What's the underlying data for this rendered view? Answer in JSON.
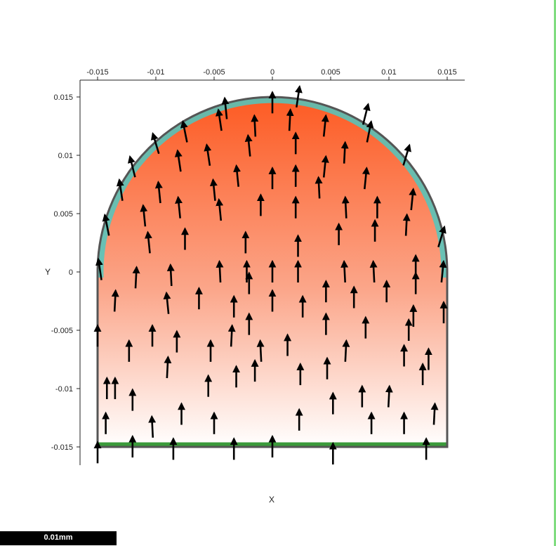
{
  "chart_data": {
    "type": "vector_field",
    "xlabel": "X",
    "ylabel": "Y",
    "xlim": [
      -0.0165,
      0.0165
    ],
    "ylim": [
      -0.0165,
      0.0165
    ],
    "x_ticks": [
      -0.015,
      -0.01,
      -0.005,
      0,
      0.005,
      0.01,
      0.015
    ],
    "x_tick_labels": [
      "-0.015",
      "-0.01",
      "-0.005",
      "0",
      "0.005",
      "0.01",
      "0.015"
    ],
    "y_ticks": [
      0.015,
      0.01,
      0.005,
      0,
      -0.005,
      -0.01,
      -0.015
    ],
    "y_tick_labels": [
      "0.015",
      "0.01",
      "0.005",
      "0",
      "-0.005",
      "-0.01",
      "-0.015"
    ],
    "domain_shape": "rectangle x in [-0.015, 0.015], y in [-0.015, 0] topped by semicircle of radius 0.015 centered at origin",
    "colors": {
      "field_high": "#fd5a22",
      "field_low": "#ffffff",
      "outer_boundary": "#4fc8c0",
      "bottom_boundary": "#3a9a3a",
      "outline": "#555555",
      "arrow": "#000000"
    },
    "arrows": [
      [
        -0.015,
        -0.0155,
        0.0
      ],
      [
        -0.012,
        -0.015,
        0.0
      ],
      [
        -0.0085,
        -0.0152,
        0.0
      ],
      [
        -0.0033,
        -0.0152,
        0.0
      ],
      [
        0.0,
        -0.015,
        0.0
      ],
      [
        0.0052,
        -0.0156,
        0.0
      ],
      [
        0.0132,
        -0.0152,
        0.0
      ],
      [
        -0.0143,
        -0.013,
        0.0
      ],
      [
        -0.0103,
        -0.0133,
        -0.05
      ],
      [
        -0.0078,
        -0.0122,
        0.0
      ],
      [
        -0.005,
        -0.013,
        0.0
      ],
      [
        0.0023,
        -0.0127,
        0.0
      ],
      [
        0.0085,
        -0.013,
        0.0
      ],
      [
        0.0113,
        -0.013,
        0.0
      ],
      [
        0.0139,
        -0.0122,
        0.05
      ],
      [
        -0.012,
        -0.011,
        0.0
      ],
      [
        -0.0142,
        -0.01,
        0.0
      ],
      [
        0.0052,
        -0.0113,
        0.0
      ],
      [
        0.0077,
        -0.0107,
        0.0
      ],
      [
        0.01,
        -0.0107,
        0.05
      ],
      [
        -0.0055,
        -0.0098,
        0.0
      ],
      [
        -0.009,
        -0.0082,
        0.05
      ],
      [
        -0.0031,
        -0.009,
        0.0
      ],
      [
        -0.0015,
        -0.0085,
        0.0
      ],
      [
        0.0024,
        -0.0088,
        0.0
      ],
      [
        0.0047,
        -0.0083,
        0.0
      ],
      [
        0.0129,
        -0.0088,
        0.0
      ],
      [
        -0.0123,
        -0.0068,
        0.0
      ],
      [
        -0.0103,
        -0.0055,
        0.0
      ],
      [
        -0.0082,
        -0.006,
        0.0
      ],
      [
        -0.0053,
        -0.0068,
        0.0
      ],
      [
        -0.0035,
        -0.0055,
        0.05
      ],
      [
        -0.001,
        -0.0068,
        -0.05
      ],
      [
        0.0013,
        -0.0063,
        0.0
      ],
      [
        0.0063,
        -0.0068,
        0.05
      ],
      [
        0.0113,
        -0.0072,
        0.0
      ],
      [
        0.0117,
        -0.005,
        0.0
      ],
      [
        0.0134,
        -0.0075,
        0.0
      ],
      [
        -0.015,
        -0.0055,
        0.0
      ],
      [
        -0.0135,
        -0.01,
        0.0
      ],
      [
        -0.002,
        -0.0045,
        0.0
      ],
      [
        0.0046,
        -0.0045,
        0.0
      ],
      [
        0.008,
        -0.0048,
        0.0
      ],
      [
        0.0147,
        -0.0035,
        0.0
      ],
      [
        0.0121,
        -0.0038,
        0.0
      ],
      [
        -0.0135,
        -0.0025,
        0.05
      ],
      [
        -0.009,
        -0.0027,
        -0.1
      ],
      [
        -0.0063,
        -0.0023,
        0.0
      ],
      [
        -0.0033,
        -0.003,
        0.0
      ],
      [
        0.0,
        -0.0025,
        0.0
      ],
      [
        0.0026,
        -0.003,
        0.0
      ],
      [
        0.0046,
        -0.0017,
        0.0
      ],
      [
        0.007,
        -0.0022,
        0.0
      ],
      [
        0.0098,
        -0.0017,
        0.0
      ],
      [
        0.0123,
        -0.001,
        0.0
      ],
      [
        -0.0117,
        -0.0005,
        0.05
      ],
      [
        -0.0087,
        -0.0003,
        -0.05
      ],
      [
        -0.0045,
        0.0,
        -0.05
      ],
      [
        -0.0022,
        0.0,
        0.0
      ],
      [
        -0.002,
        -0.001,
        0.0
      ],
      [
        0.0,
        0.0,
        0.0
      ],
      [
        0.0022,
        0.0,
        0.0
      ],
      [
        0.0062,
        0.0,
        -0.05
      ],
      [
        0.0087,
        0.0,
        -0.05
      ],
      [
        0.0123,
        0.0005,
        0.0
      ],
      [
        0.0146,
        0.0,
        0.1
      ],
      [
        -0.0148,
        0.0002,
        -0.15
      ],
      [
        -0.0106,
        0.0025,
        -0.1
      ],
      [
        -0.0075,
        0.0028,
        0.0
      ],
      [
        -0.0023,
        0.0025,
        0.0
      ],
      [
        0.0022,
        0.0022,
        0.0
      ],
      [
        0.0057,
        0.0032,
        0.0
      ],
      [
        0.0088,
        0.0035,
        0.0
      ],
      [
        0.0115,
        0.004,
        0.05
      ],
      [
        0.0145,
        0.003,
        0.3
      ],
      [
        -0.0142,
        0.004,
        -0.2
      ],
      [
        -0.011,
        0.0048,
        -0.1
      ],
      [
        -0.008,
        0.0055,
        -0.1
      ],
      [
        -0.0045,
        0.0053,
        -0.1
      ],
      [
        -0.001,
        0.0057,
        0.0
      ],
      [
        0.002,
        0.0055,
        0.0
      ],
      [
        0.004,
        0.0072,
        -0.05
      ],
      [
        0.0063,
        0.0055,
        -0.05
      ],
      [
        0.009,
        0.0055,
        0.0
      ],
      [
        0.012,
        0.0062,
        0.1
      ],
      [
        -0.013,
        0.007,
        -0.15
      ],
      [
        -0.0097,
        0.0068,
        -0.1
      ],
      [
        -0.005,
        0.007,
        -0.1
      ],
      [
        -0.003,
        0.0082,
        -0.1
      ],
      [
        0.0,
        0.008,
        0.0
      ],
      [
        0.002,
        0.0082,
        0.0
      ],
      [
        0.0045,
        0.009,
        0.1
      ],
      [
        0.008,
        0.008,
        0.1
      ],
      [
        -0.012,
        0.009,
        -0.25
      ],
      [
        -0.008,
        0.0095,
        -0.15
      ],
      [
        -0.0055,
        0.01,
        -0.15
      ],
      [
        -0.002,
        0.0108,
        -0.1
      ],
      [
        0.002,
        0.011,
        0.0
      ],
      [
        0.0062,
        0.0102,
        0.05
      ],
      [
        0.0083,
        0.012,
        0.2
      ],
      [
        0.0115,
        0.01,
        0.3
      ],
      [
        -0.01,
        0.011,
        -0.3
      ],
      [
        -0.0075,
        0.012,
        -0.2
      ],
      [
        -0.0045,
        0.013,
        -0.15
      ],
      [
        -0.0015,
        0.0125,
        -0.05
      ],
      [
        0.0015,
        0.013,
        0.05
      ],
      [
        0.0045,
        0.0125,
        0.1
      ],
      [
        -0.004,
        0.014,
        -0.1
      ],
      [
        0.0,
        0.0145,
        0.0
      ],
      [
        0.0022,
        0.015,
        0.15
      ],
      [
        0.008,
        0.0135,
        0.25
      ]
    ]
  },
  "scale_bar_label": "0.01mm"
}
